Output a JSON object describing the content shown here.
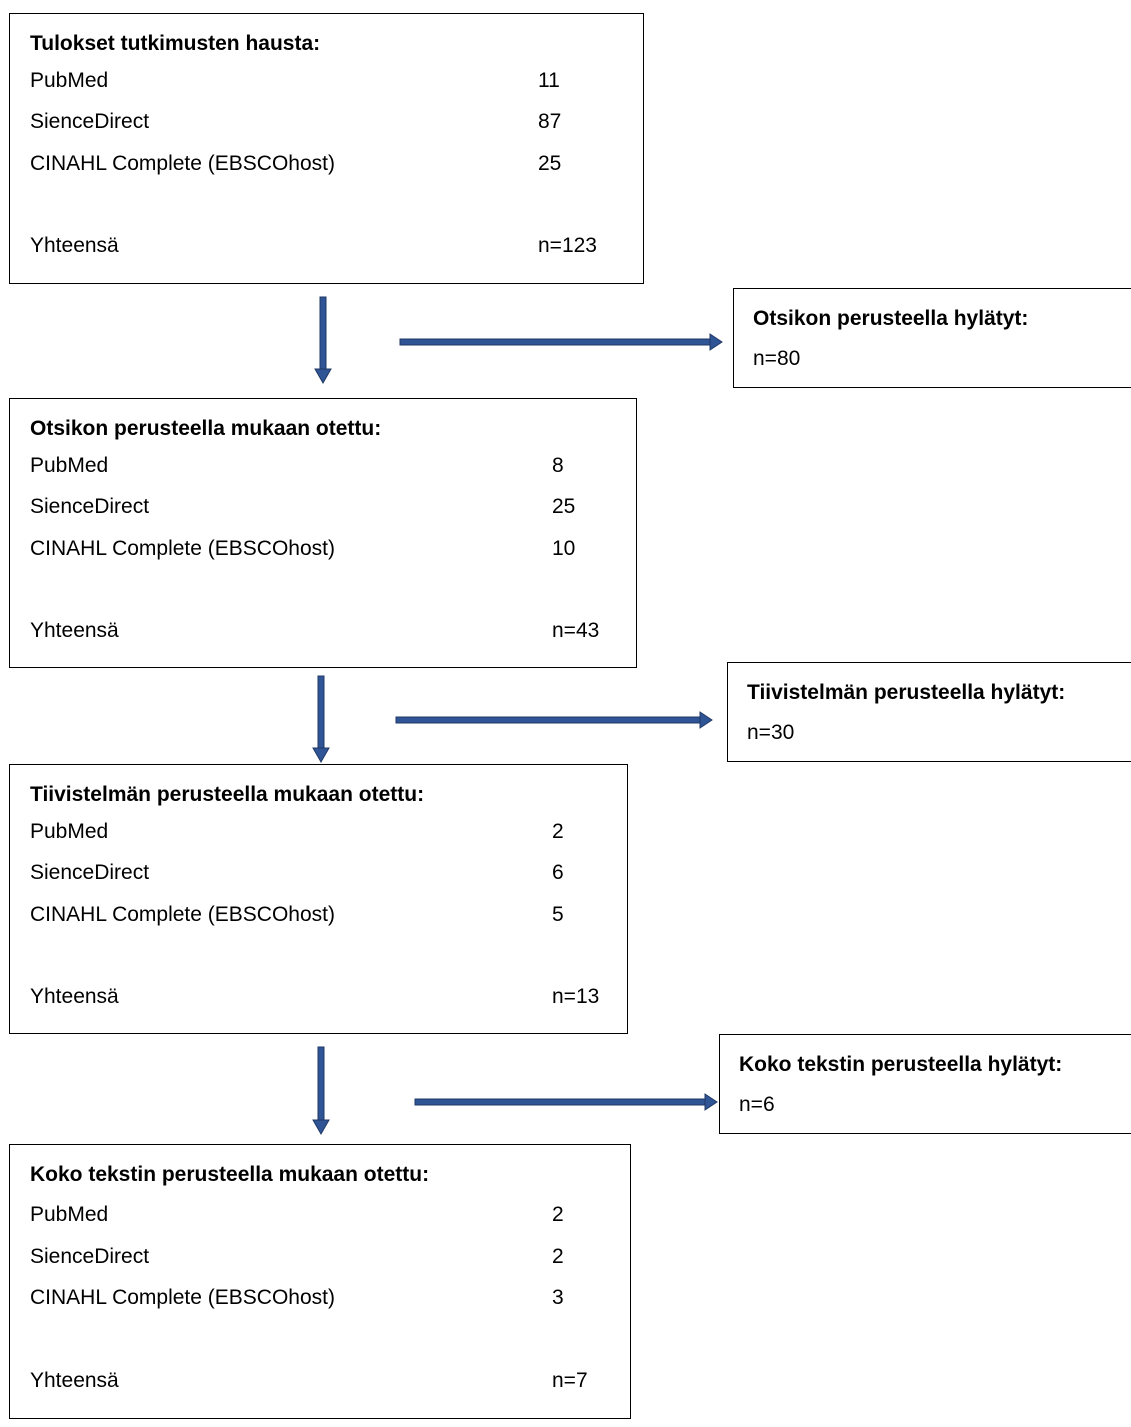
{
  "stages": [
    {
      "title": "Tulokset tutkimusten hausta:",
      "rows": [
        {
          "label": "PubMed",
          "value": "11"
        },
        {
          "label": "SienceDirect",
          "value": "87"
        },
        {
          "label": "CINAHL Complete (EBSCOhost)",
          "value": "25"
        }
      ],
      "total_label": "Yhteensä",
      "total_value": "n=123"
    },
    {
      "title": "Otsikon perusteella mukaan otettu:",
      "rows": [
        {
          "label": "PubMed",
          "value": "8"
        },
        {
          "label": "SienceDirect",
          "value": "25"
        },
        {
          "label": "CINAHL Complete (EBSCOhost)",
          "value": "10"
        }
      ],
      "total_label": "Yhteensä",
      "total_value": "n=43"
    },
    {
      "title": "Tiivistelmän perusteella mukaan otettu:",
      "rows": [
        {
          "label": "PubMed",
          "value": "2"
        },
        {
          "label": "SienceDirect",
          "value": "6"
        },
        {
          "label": "CINAHL Complete (EBSCOhost)",
          "value": "5"
        }
      ],
      "total_label": "Yhteensä",
      "total_value": "n=13"
    },
    {
      "title": "Koko tekstin perusteella mukaan otettu:",
      "rows": [
        {
          "label": "PubMed",
          "value": "2"
        },
        {
          "label": "SienceDirect",
          "value": "2"
        },
        {
          "label": "CINAHL Complete (EBSCOhost)",
          "value": "3"
        }
      ],
      "total_label": "Yhteensä",
      "total_value": "n=7"
    }
  ],
  "exclusions": [
    {
      "title": "Otsikon perusteella hylätyt:",
      "value": "n=80"
    },
    {
      "title": "Tiivistelmän perusteella hylätyt:",
      "value": "n=30"
    },
    {
      "title": "Koko tekstin perusteella hylätyt:",
      "value": "n=6"
    }
  ],
  "colors": {
    "arrow_fill": "#2f5597",
    "arrow_outline": "#203864",
    "box_border": "#000000"
  }
}
